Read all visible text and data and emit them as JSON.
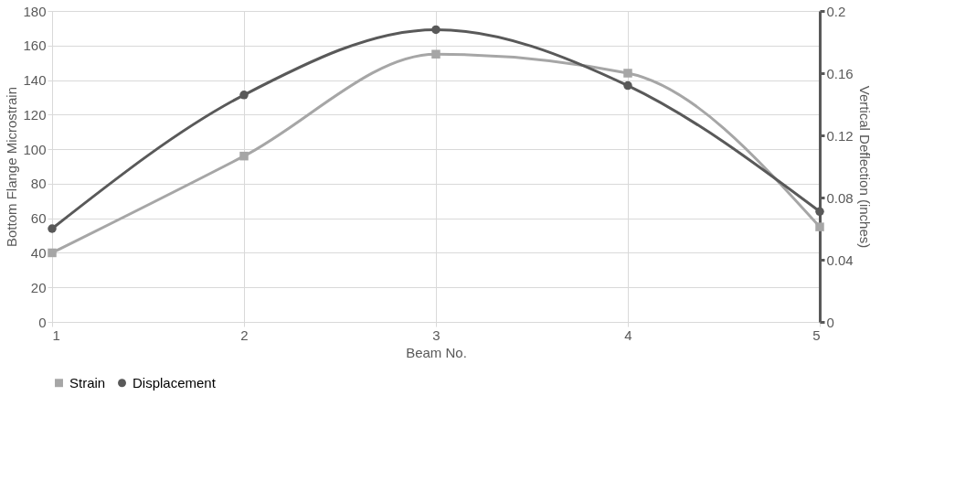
{
  "chart_data": {
    "type": "line",
    "xlabel": "Beam No.",
    "ylabel": "Bottom Flange Microstrain",
    "y2label": "Vertical Deflection (inches)",
    "x": [
      1,
      2,
      3,
      4,
      5
    ],
    "series": [
      {
        "name": "Strain",
        "color": "#a6a6a6",
        "marker": "square",
        "values": [
          40,
          96,
          155,
          144,
          55
        ]
      },
      {
        "name": "Displacement",
        "color": "#595959",
        "marker": "circle",
        "axis": "y2",
        "values": [
          0.06,
          0.146,
          0.188,
          0.152,
          0.071
        ]
      }
    ],
    "xlim": [
      1,
      5
    ],
    "xticks": [
      1,
      2,
      3,
      4,
      5
    ],
    "ylim": [
      0,
      180
    ],
    "yticks": [
      0,
      20,
      40,
      60,
      80,
      100,
      120,
      140,
      160,
      180
    ],
    "y2lim": [
      0,
      0.2
    ],
    "y2ticks": [
      0,
      0.04,
      0.08,
      0.12,
      0.16,
      0.2
    ],
    "grid": true,
    "legend": "bottom",
    "line_style": "solid"
  }
}
